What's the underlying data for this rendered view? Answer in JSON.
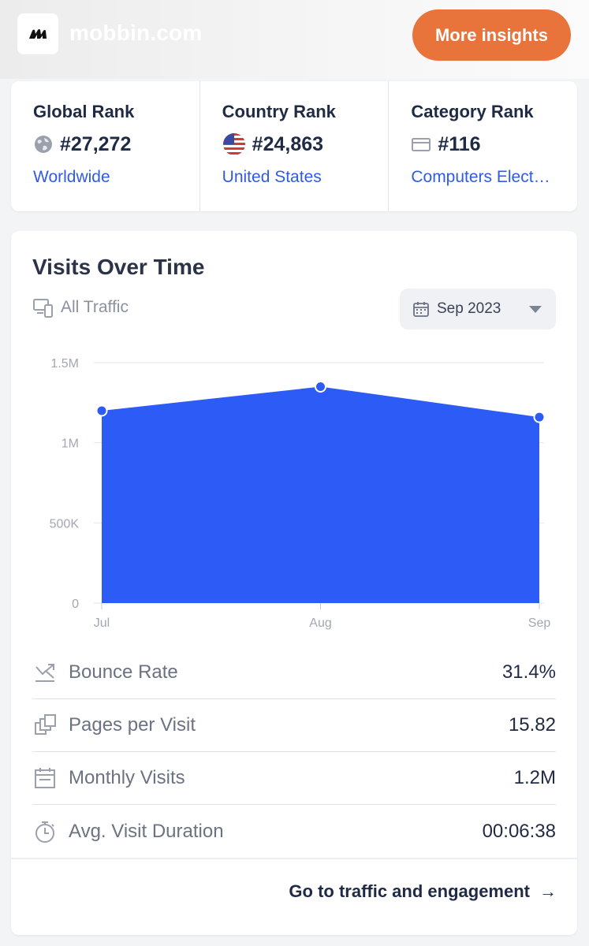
{
  "header": {
    "site_name": "mobbin.com",
    "cta_label": "More insights",
    "cta_color": "#e8743b"
  },
  "ranks": [
    {
      "title": "Global Rank",
      "icon": "globe-icon",
      "value": "#27,272",
      "link": "Worldwide"
    },
    {
      "title": "Country Rank",
      "icon": "us-flag-icon",
      "value": "#24,863",
      "link": "United States"
    },
    {
      "title": "Category Rank",
      "icon": "category-icon",
      "value": "#116",
      "link": "Computers Elect…"
    }
  ],
  "visits": {
    "title": "Visits Over Time",
    "traffic_filter": "All Traffic",
    "date_select": "Sep 2023"
  },
  "chart_data": {
    "type": "area",
    "categories": [
      "Jul",
      "Aug",
      "Sep"
    ],
    "values": [
      1200000,
      1350000,
      1160000
    ],
    "y_ticks": [
      "0",
      "500K",
      "1M",
      "1.5M"
    ],
    "ylim": [
      0,
      1500000
    ],
    "color": "#2d5bf5",
    "grid": true
  },
  "metrics": [
    {
      "icon": "bounce-rate-icon",
      "label": "Bounce Rate",
      "value": "31.4%"
    },
    {
      "icon": "pages-icon",
      "label": "Pages per Visit",
      "value": "15.82"
    },
    {
      "icon": "calendar-icon",
      "label": "Monthly Visits",
      "value": "1.2M"
    },
    {
      "icon": "stopwatch-icon",
      "label": "Avg. Visit Duration",
      "value": "00:06:38"
    }
  ],
  "footer": {
    "link_label": "Go to traffic and engagement",
    "arrow": "→"
  }
}
